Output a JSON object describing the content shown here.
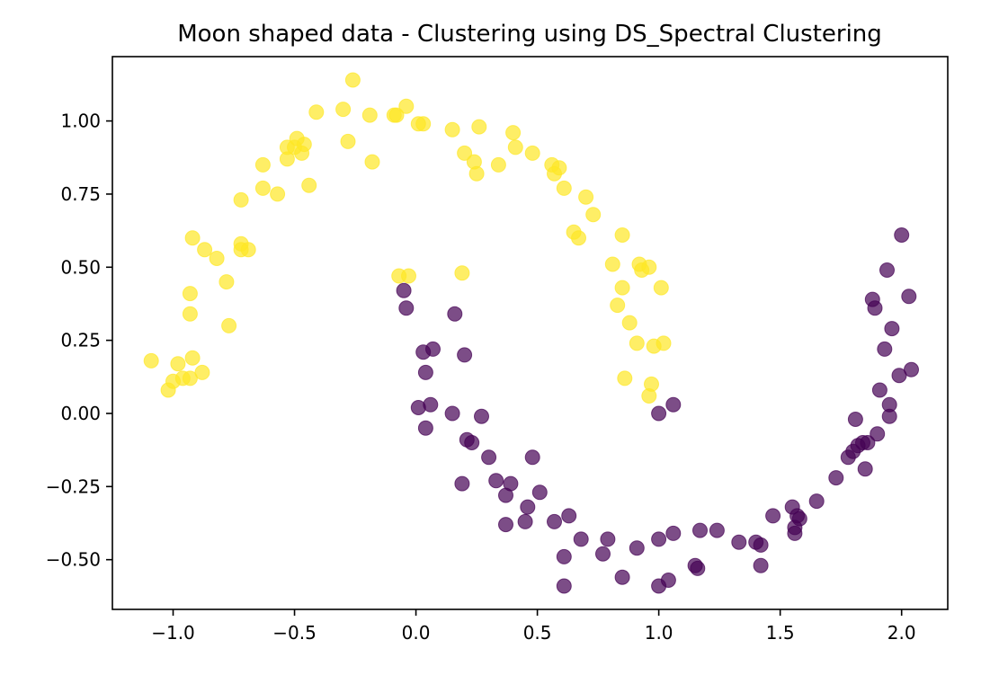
{
  "chart_data": {
    "type": "scatter",
    "title": "Moon shaped data - Clustering using DS_Spectral Clustering",
    "xlabel": "",
    "ylabel": "",
    "xlim": [
      -1.25,
      2.19
    ],
    "ylim": [
      -0.67,
      1.22
    ],
    "xticks": [
      -1.0,
      -0.5,
      0.0,
      0.5,
      1.0,
      1.5,
      2.0
    ],
    "xtick_labels": [
      "−1.0",
      "−0.5",
      "0.0",
      "0.5",
      "1.0",
      "1.5",
      "2.0"
    ],
    "yticks": [
      -0.5,
      -0.25,
      0.0,
      0.25,
      0.5,
      0.75,
      1.0
    ],
    "ytick_labels": [
      "−0.50",
      "−0.25",
      "0.00",
      "0.25",
      "0.50",
      "0.75",
      "1.00"
    ],
    "grid": false,
    "legend": "none",
    "colors": {
      "cluster_0": "#440154",
      "cluster_1": "#fde725",
      "axes": "#000000"
    },
    "point_alpha": 0.7,
    "series": [
      {
        "color": "#fde725",
        "points": [
          [
            -1.09,
            0.18
          ],
          [
            -1.02,
            0.08
          ],
          [
            -1.0,
            0.11
          ],
          [
            -0.98,
            0.17
          ],
          [
            -0.96,
            0.12
          ],
          [
            -0.93,
            0.12
          ],
          [
            -0.92,
            0.19
          ],
          [
            -0.88,
            0.14
          ],
          [
            -0.93,
            0.34
          ],
          [
            -0.93,
            0.41
          ],
          [
            -0.92,
            0.6
          ],
          [
            -0.87,
            0.56
          ],
          [
            -0.82,
            0.53
          ],
          [
            -0.78,
            0.45
          ],
          [
            -0.77,
            0.3
          ],
          [
            -0.72,
            0.56
          ],
          [
            -0.72,
            0.58
          ],
          [
            -0.69,
            0.56
          ],
          [
            -0.72,
            0.73
          ],
          [
            -0.63,
            0.77
          ],
          [
            -0.63,
            0.85
          ],
          [
            -0.57,
            0.75
          ],
          [
            -0.53,
            0.87
          ],
          [
            -0.53,
            0.91
          ],
          [
            -0.5,
            0.91
          ],
          [
            -0.49,
            0.94
          ],
          [
            -0.47,
            0.89
          ],
          [
            -0.46,
            0.92
          ],
          [
            -0.44,
            0.78
          ],
          [
            -0.41,
            1.03
          ],
          [
            -0.3,
            1.04
          ],
          [
            -0.28,
            0.93
          ],
          [
            -0.26,
            1.14
          ],
          [
            -0.19,
            1.02
          ],
          [
            -0.18,
            0.86
          ],
          [
            -0.09,
            1.02
          ],
          [
            -0.08,
            1.02
          ],
          [
            -0.04,
            1.05
          ],
          [
            0.01,
            0.99
          ],
          [
            0.03,
            0.99
          ],
          [
            0.15,
            0.97
          ],
          [
            0.2,
            0.89
          ],
          [
            0.24,
            0.86
          ],
          [
            0.25,
            0.82
          ],
          [
            0.26,
            0.98
          ],
          [
            0.34,
            0.85
          ],
          [
            0.4,
            0.96
          ],
          [
            0.41,
            0.91
          ],
          [
            0.48,
            0.89
          ],
          [
            0.56,
            0.85
          ],
          [
            0.57,
            0.82
          ],
          [
            0.59,
            0.84
          ],
          [
            0.61,
            0.77
          ],
          [
            0.65,
            0.62
          ],
          [
            0.67,
            0.6
          ],
          [
            0.7,
            0.74
          ],
          [
            0.73,
            0.68
          ],
          [
            0.81,
            0.51
          ],
          [
            0.83,
            0.37
          ],
          [
            0.85,
            0.61
          ],
          [
            0.85,
            0.43
          ],
          [
            0.86,
            0.12
          ],
          [
            0.88,
            0.31
          ],
          [
            0.91,
            0.24
          ],
          [
            0.92,
            0.51
          ],
          [
            0.93,
            0.49
          ],
          [
            0.96,
            0.5
          ],
          [
            0.96,
            0.06
          ],
          [
            0.97,
            0.1
          ],
          [
            0.98,
            0.23
          ],
          [
            1.01,
            0.43
          ],
          [
            1.02,
            0.24
          ],
          [
            -0.07,
            0.47
          ],
          [
            -0.03,
            0.47
          ],
          [
            0.19,
            0.48
          ]
        ]
      },
      {
        "color": "#440154",
        "points": [
          [
            -0.05,
            0.42
          ],
          [
            -0.04,
            0.36
          ],
          [
            0.01,
            0.02
          ],
          [
            0.03,
            0.21
          ],
          [
            0.04,
            -0.05
          ],
          [
            0.04,
            0.14
          ],
          [
            0.06,
            0.03
          ],
          [
            0.07,
            0.22
          ],
          [
            0.15,
            0.0
          ],
          [
            0.16,
            0.34
          ],
          [
            0.19,
            -0.24
          ],
          [
            0.2,
            0.2
          ],
          [
            0.21,
            -0.09
          ],
          [
            0.23,
            -0.1
          ],
          [
            0.27,
            -0.01
          ],
          [
            0.3,
            -0.15
          ],
          [
            0.33,
            -0.23
          ],
          [
            0.37,
            -0.28
          ],
          [
            0.37,
            -0.38
          ],
          [
            0.39,
            -0.24
          ],
          [
            0.45,
            -0.37
          ],
          [
            0.46,
            -0.32
          ],
          [
            0.48,
            -0.15
          ],
          [
            0.51,
            -0.27
          ],
          [
            0.57,
            -0.37
          ],
          [
            0.61,
            -0.49
          ],
          [
            0.61,
            -0.59
          ],
          [
            0.63,
            -0.35
          ],
          [
            0.68,
            -0.43
          ],
          [
            0.77,
            -0.48
          ],
          [
            0.79,
            -0.43
          ],
          [
            0.85,
            -0.56
          ],
          [
            0.91,
            -0.46
          ],
          [
            1.0,
            -0.43
          ],
          [
            1.0,
            -0.59
          ],
          [
            1.04,
            -0.57
          ],
          [
            1.06,
            -0.41
          ],
          [
            1.0,
            0.0
          ],
          [
            1.06,
            0.03
          ],
          [
            1.15,
            -0.52
          ],
          [
            1.16,
            -0.53
          ],
          [
            1.17,
            -0.4
          ],
          [
            1.24,
            -0.4
          ],
          [
            1.33,
            -0.44
          ],
          [
            1.4,
            -0.44
          ],
          [
            1.42,
            -0.45
          ],
          [
            1.42,
            -0.52
          ],
          [
            1.47,
            -0.35
          ],
          [
            1.55,
            -0.32
          ],
          [
            1.56,
            -0.39
          ],
          [
            1.56,
            -0.41
          ],
          [
            1.57,
            -0.35
          ],
          [
            1.58,
            -0.36
          ],
          [
            1.65,
            -0.3
          ],
          [
            1.73,
            -0.22
          ],
          [
            1.78,
            -0.15
          ],
          [
            1.8,
            -0.13
          ],
          [
            1.81,
            -0.02
          ],
          [
            1.82,
            -0.11
          ],
          [
            1.84,
            -0.1
          ],
          [
            1.85,
            -0.19
          ],
          [
            1.86,
            -0.1
          ],
          [
            1.88,
            0.39
          ],
          [
            1.89,
            0.36
          ],
          [
            1.9,
            -0.07
          ],
          [
            1.91,
            0.08
          ],
          [
            1.93,
            0.22
          ],
          [
            1.94,
            0.49
          ],
          [
            1.95,
            0.03
          ],
          [
            1.95,
            -0.01
          ],
          [
            1.96,
            0.29
          ],
          [
            1.99,
            0.13
          ],
          [
            2.0,
            0.61
          ],
          [
            2.03,
            0.4
          ],
          [
            2.04,
            0.15
          ]
        ]
      }
    ]
  }
}
